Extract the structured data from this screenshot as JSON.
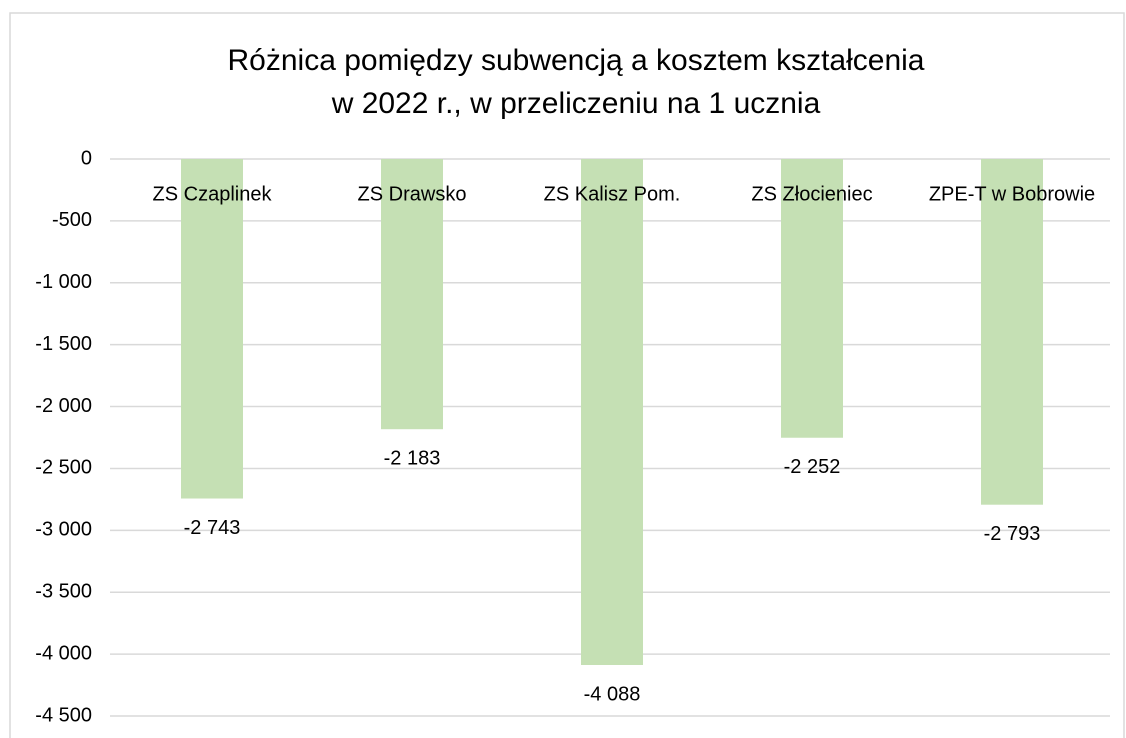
{
  "chart_data": {
    "type": "bar",
    "title": [
      "Różnica pomiędzy subwencją a kosztem kształcenia",
      "w 2022 r., w przeliczeniu na 1 ucznia"
    ],
    "categories": [
      "ZS Czaplinek",
      "ZS Drawsko",
      "ZS Kalisz Pom.",
      "ZS Złocieniec",
      "ZPE-T w Bobrowie"
    ],
    "values": [
      -2743,
      -2183,
      -4088,
      -2252,
      -2793
    ],
    "value_labels": [
      "-2 743",
      "-2 183",
      "-4 088",
      "-2 252",
      "-2 793"
    ],
    "color": "#c5e0b4",
    "ylim": [
      -4500,
      0
    ],
    "yticks": [
      0,
      -500,
      {
        "value": -1000,
        "label": "-1 000"
      },
      {
        "value": -1500,
        "label": "-1 500"
      },
      {
        "value": -2000,
        "label": "-2 000"
      },
      {
        "value": -2500,
        "label": "-2 500"
      },
      {
        "value": -3000,
        "label": "-3 000"
      },
      {
        "value": -3500,
        "label": "-3 500"
      },
      {
        "value": -4000,
        "label": "-4 000"
      },
      {
        "value": -4500,
        "label": "-4 500"
      }
    ],
    "grid": true
  }
}
